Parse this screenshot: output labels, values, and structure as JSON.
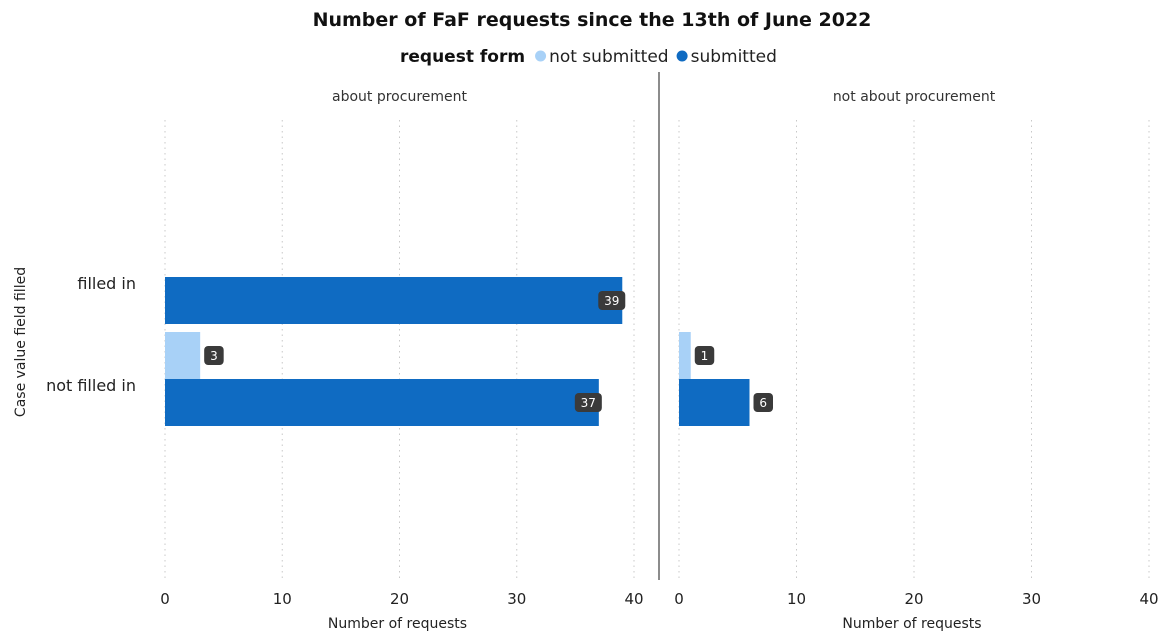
{
  "chart_data": {
    "type": "bar",
    "orientation": "horizontal",
    "title": "Number of FaF requests since the 13th of June 2022",
    "legend": {
      "title": "request form",
      "placement": "top-center",
      "entries": [
        {
          "name": "not submitted",
          "color": "#A8D1F7"
        },
        {
          "name": "submitted",
          "color": "#0F6BC2"
        }
      ]
    },
    "ylabel": "Case value field filled",
    "xlabel": "Number of requests",
    "categories": [
      "filled in",
      "not filled in"
    ],
    "xlim": [
      0,
      40
    ],
    "xticks": [
      0,
      10,
      20,
      30,
      40
    ],
    "grid": "vertical dotted",
    "panels": [
      {
        "title": "about procurement",
        "series": [
          {
            "name": "not submitted",
            "values": [
              null,
              3
            ]
          },
          {
            "name": "submitted",
            "values": [
              39,
              37
            ]
          }
        ]
      },
      {
        "title": "not about procurement",
        "series": [
          {
            "name": "not submitted",
            "values": [
              null,
              1
            ]
          },
          {
            "name": "submitted",
            "values": [
              null,
              6
            ]
          }
        ]
      }
    ]
  }
}
